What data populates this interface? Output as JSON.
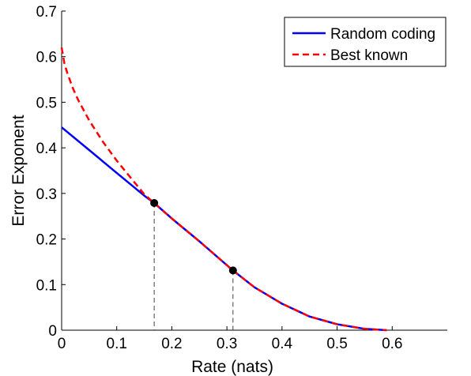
{
  "chart_data": {
    "type": "line",
    "title": "",
    "xlabel": "Rate (nats)",
    "ylabel": "Error Exponent",
    "xlim": [
      0,
      0.7
    ],
    "ylim": [
      0,
      0.7
    ],
    "xticks": [
      0,
      0.1,
      0.2,
      0.3,
      0.4,
      0.5,
      0.6
    ],
    "xtick_labels": [
      "0",
      "0.1",
      "0.2",
      "0.3",
      "0.4",
      "0.5",
      "0.6"
    ],
    "yticks": [
      0,
      0.1,
      0.2,
      0.3,
      0.4,
      0.5,
      0.6,
      0.7
    ],
    "ytick_labels": [
      "0",
      "0.1",
      "0.2",
      "0.3",
      "0.4",
      "0.5",
      "0.6",
      "0.7"
    ],
    "grid": false,
    "legend": {
      "placement": "top-right"
    },
    "series": [
      {
        "name": "Random coding",
        "color": "#0000ff",
        "style": "solid",
        "x": [
          0,
          0.05,
          0.1,
          0.15,
          0.168,
          0.2,
          0.25,
          0.311,
          0.35,
          0.4,
          0.45,
          0.5,
          0.55,
          0.59
        ],
        "y": [
          0.445,
          0.395,
          0.345,
          0.295,
          0.279,
          0.245,
          0.195,
          0.131,
          0.094,
          0.058,
          0.03,
          0.013,
          0.003,
          0.0
        ]
      },
      {
        "name": "Best known",
        "color": "#ff0000",
        "style": "dashed",
        "x": [
          0,
          0.005,
          0.01,
          0.02,
          0.03,
          0.05,
          0.075,
          0.1,
          0.125,
          0.15,
          0.168,
          0.2,
          0.25,
          0.311,
          0.35,
          0.4,
          0.45,
          0.5,
          0.55,
          0.59
        ],
        "y": [
          0.62,
          0.585,
          0.565,
          0.532,
          0.505,
          0.46,
          0.413,
          0.372,
          0.335,
          0.298,
          0.279,
          0.245,
          0.195,
          0.131,
          0.094,
          0.058,
          0.03,
          0.013,
          0.003,
          0.0
        ]
      }
    ],
    "markers": [
      {
        "x": 0.168,
        "y": 0.279
      },
      {
        "x": 0.311,
        "y": 0.131
      }
    ]
  }
}
